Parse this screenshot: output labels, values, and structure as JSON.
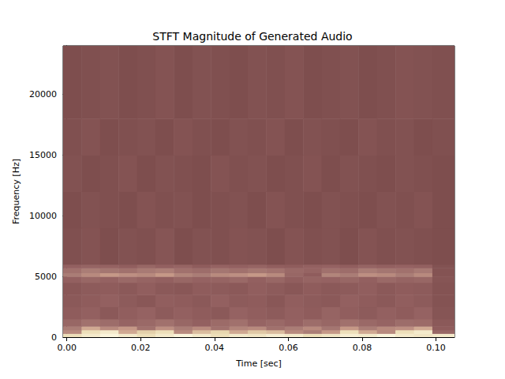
{
  "chart_data": {
    "type": "spectrogram",
    "title": "STFT Magnitude of Generated Audio",
    "x_label": "Time [sec]",
    "y_label": "Frequency [Hz]",
    "xlim": [
      -0.001,
      0.105
    ],
    "xticks": [
      {
        "value": 0,
        "label": "0.00"
      },
      {
        "value": 0.02,
        "label": "0.02"
      },
      {
        "value": 0.04,
        "label": "0.04"
      },
      {
        "value": 0.06,
        "label": "0.06"
      },
      {
        "value": 0.08,
        "label": "0.08"
      },
      {
        "value": 0.1,
        "label": "0.10"
      }
    ],
    "ylim": [
      0,
      24000
    ],
    "yticks": [
      0,
      5000,
      10000,
      15000,
      20000
    ],
    "grid": false,
    "time_edges": [
      -0.001,
      0.004,
      0.009,
      0.014,
      0.019,
      0.024,
      0.029,
      0.034,
      0.039,
      0.044,
      0.049,
      0.054,
      0.059,
      0.064,
      0.069,
      0.074,
      0.079,
      0.084,
      0.089,
      0.094,
      0.099,
      0.105
    ],
    "freq_edges": [
      0,
      300,
      600,
      900,
      1500,
      2500,
      3500,
      4500,
      5000,
      5300,
      5700,
      6000,
      9000,
      12000,
      15000,
      18000,
      24000
    ],
    "magnitude": [
      [
        0.85,
        0.9,
        0.95,
        0.9,
        0.85,
        0.9,
        0.95,
        0.9,
        0.85,
        0.9,
        0.88,
        0.92,
        0.9,
        0.85,
        0.88,
        0.92,
        0.9,
        0.95,
        0.9,
        0.88,
        0.9
      ],
      [
        0.6,
        0.85,
        0.9,
        0.7,
        0.8,
        0.85,
        0.6,
        0.75,
        0.82,
        0.7,
        0.78,
        0.75,
        0.6,
        0.55,
        0.65,
        0.85,
        0.7,
        0.6,
        0.85,
        0.9,
        0.45
      ],
      [
        0.55,
        0.7,
        0.6,
        0.65,
        0.5,
        0.62,
        0.55,
        0.6,
        0.5,
        0.58,
        0.6,
        0.5,
        0.55,
        0.6,
        0.52,
        0.65,
        0.55,
        0.6,
        0.62,
        0.7,
        0.4
      ],
      [
        0.45,
        0.5,
        0.48,
        0.44,
        0.46,
        0.5,
        0.45,
        0.42,
        0.47,
        0.5,
        0.44,
        0.46,
        0.43,
        0.48,
        0.45,
        0.5,
        0.46,
        0.44,
        0.48,
        0.47,
        0.38
      ],
      [
        0.4,
        0.42,
        0.38,
        0.41,
        0.43,
        0.39,
        0.42,
        0.4,
        0.38,
        0.43,
        0.41,
        0.39,
        0.42,
        0.4,
        0.44,
        0.41,
        0.39,
        0.42,
        0.4,
        0.43,
        0.36
      ],
      [
        0.38,
        0.4,
        0.42,
        0.39,
        0.37,
        0.41,
        0.4,
        0.38,
        0.42,
        0.39,
        0.4,
        0.37,
        0.41,
        0.39,
        0.38,
        0.42,
        0.4,
        0.38,
        0.41,
        0.39,
        0.35
      ],
      [
        0.37,
        0.39,
        0.4,
        0.38,
        0.41,
        0.38,
        0.37,
        0.4,
        0.39,
        0.38,
        0.41,
        0.39,
        0.37,
        0.4,
        0.38,
        0.39,
        0.41,
        0.38,
        0.4,
        0.39,
        0.35
      ],
      [
        0.42,
        0.45,
        0.43,
        0.46,
        0.44,
        0.42,
        0.45,
        0.43,
        0.44,
        0.46,
        0.42,
        0.45,
        0.41,
        0.44,
        0.43,
        0.45,
        0.42,
        0.46,
        0.44,
        0.45,
        0.36
      ],
      [
        0.55,
        0.6,
        0.65,
        0.62,
        0.6,
        0.65,
        0.58,
        0.55,
        0.6,
        0.62,
        0.65,
        0.6,
        0.45,
        0.4,
        0.58,
        0.55,
        0.62,
        0.6,
        0.55,
        0.6,
        0.35
      ],
      [
        0.5,
        0.55,
        0.52,
        0.5,
        0.54,
        0.56,
        0.5,
        0.48,
        0.52,
        0.5,
        0.53,
        0.51,
        0.46,
        0.44,
        0.5,
        0.48,
        0.55,
        0.52,
        0.5,
        0.54,
        0.35
      ],
      [
        0.42,
        0.44,
        0.43,
        0.41,
        0.45,
        0.42,
        0.44,
        0.4,
        0.43,
        0.42,
        0.44,
        0.41,
        0.4,
        0.42,
        0.43,
        0.41,
        0.44,
        0.42,
        0.43,
        0.42,
        0.34
      ],
      [
        0.33,
        0.35,
        0.32,
        0.34,
        0.33,
        0.36,
        0.32,
        0.34,
        0.33,
        0.35,
        0.34,
        0.32,
        0.35,
        0.33,
        0.34,
        0.32,
        0.35,
        0.33,
        0.34,
        0.33,
        0.32
      ],
      [
        0.32,
        0.34,
        0.33,
        0.32,
        0.35,
        0.33,
        0.34,
        0.32,
        0.33,
        0.34,
        0.32,
        0.35,
        0.33,
        0.32,
        0.34,
        0.33,
        0.32,
        0.34,
        0.33,
        0.35,
        0.32
      ],
      [
        0.34,
        0.32,
        0.33,
        0.35,
        0.32,
        0.34,
        0.33,
        0.32,
        0.35,
        0.33,
        0.34,
        0.32,
        0.33,
        0.35,
        0.32,
        0.34,
        0.33,
        0.32,
        0.34,
        0.33,
        0.32
      ],
      [
        0.33,
        0.35,
        0.32,
        0.33,
        0.34,
        0.32,
        0.35,
        0.33,
        0.32,
        0.34,
        0.33,
        0.35,
        0.32,
        0.34,
        0.33,
        0.32,
        0.35,
        0.33,
        0.34,
        0.32,
        0.33
      ],
      [
        0.32,
        0.33,
        0.34,
        0.32,
        0.33,
        0.35,
        0.32,
        0.34,
        0.33,
        0.32,
        0.34,
        0.33,
        0.35,
        0.32,
        0.33,
        0.34,
        0.32,
        0.33,
        0.35,
        0.34,
        0.33
      ]
    ]
  }
}
